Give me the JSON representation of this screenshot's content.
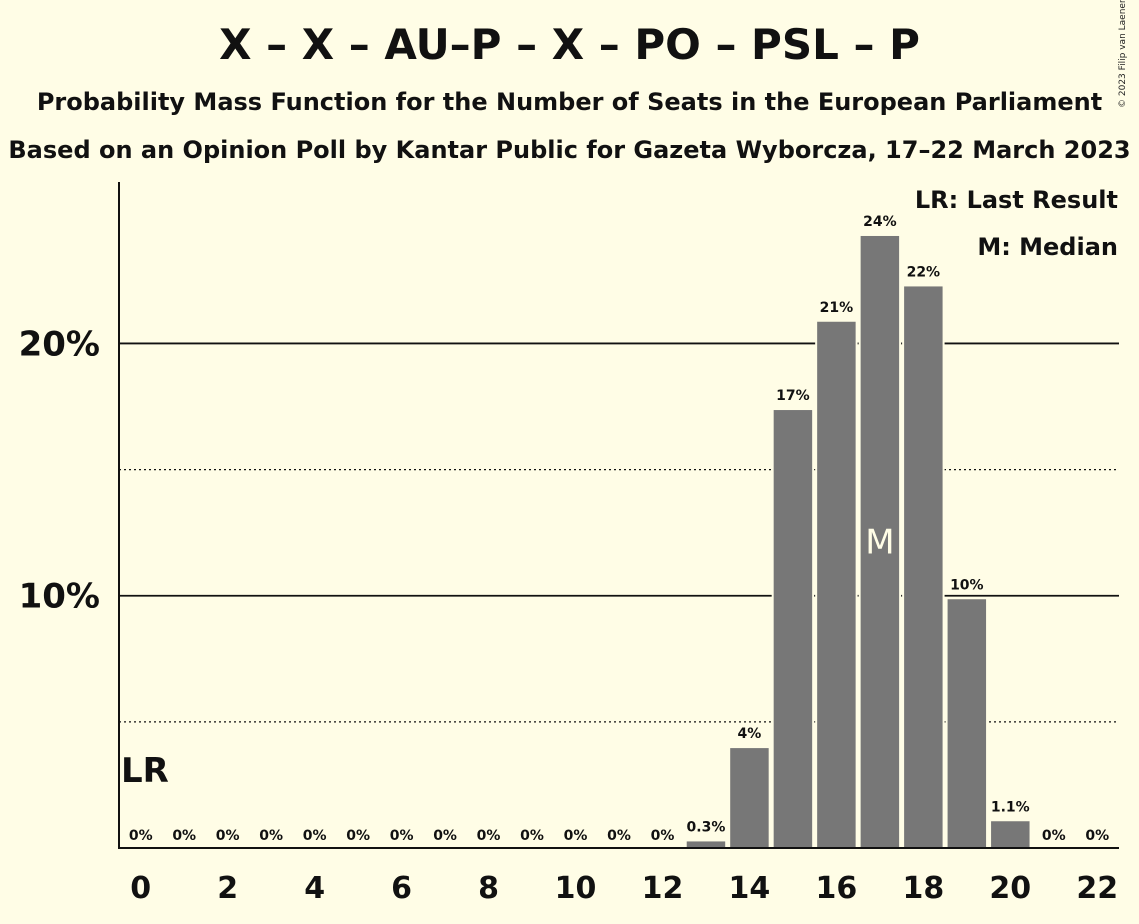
{
  "chart_data": {
    "type": "bar",
    "title": "X – X – AU–P – X – PO – PSL – P",
    "subtitle": "Probability Mass Function for the Number of Seats in the European Parliament",
    "subtitle2": "Based on an Opinion Poll by Kantar Public for Gazeta Wyborcza, 17–22 March 2023",
    "copyright": "© 2023 Filip van Laenen",
    "categories": [
      0,
      1,
      2,
      3,
      4,
      5,
      6,
      7,
      8,
      9,
      10,
      11,
      12,
      13,
      14,
      15,
      16,
      17,
      18,
      19,
      20,
      21,
      22
    ],
    "values": [
      0,
      0,
      0,
      0,
      0,
      0,
      0,
      0,
      0,
      0,
      0,
      0,
      0,
      0.3,
      4,
      17.4,
      20.9,
      24.3,
      22.3,
      9.9,
      1.1,
      0,
      0
    ],
    "labels": [
      "0%",
      "0%",
      "0%",
      "0%",
      "0%",
      "0%",
      "0%",
      "0%",
      "0%",
      "0%",
      "0%",
      "0%",
      "0%",
      "0.3%",
      "4%",
      "17%",
      "21%",
      "24%",
      "22%",
      "10%",
      "1.1%",
      "0%",
      "0%"
    ],
    "x_tick_labels": [
      "0",
      "2",
      "4",
      "6",
      "8",
      "10",
      "12",
      "14",
      "16",
      "18",
      "20",
      "22"
    ],
    "x_tick_values": [
      0,
      2,
      4,
      6,
      8,
      10,
      12,
      14,
      16,
      18,
      20,
      22
    ],
    "y_tick_labels": [
      "10%",
      "20%"
    ],
    "y_tick_values": [
      10,
      20
    ],
    "ylim": [
      0,
      26.4
    ],
    "gridlines": {
      "solid": [
        10,
        20
      ],
      "dotted": [
        5,
        15
      ]
    },
    "last_result": {
      "seats": 0,
      "label": "LR"
    },
    "median": {
      "seats": 17,
      "label": "M"
    },
    "legend": {
      "last_result": "LR: Last Result",
      "median": "M: Median",
      "placement": "top-right"
    },
    "colors": {
      "bar": "#777777",
      "background": "#fffde6",
      "text": "#111111"
    }
  }
}
